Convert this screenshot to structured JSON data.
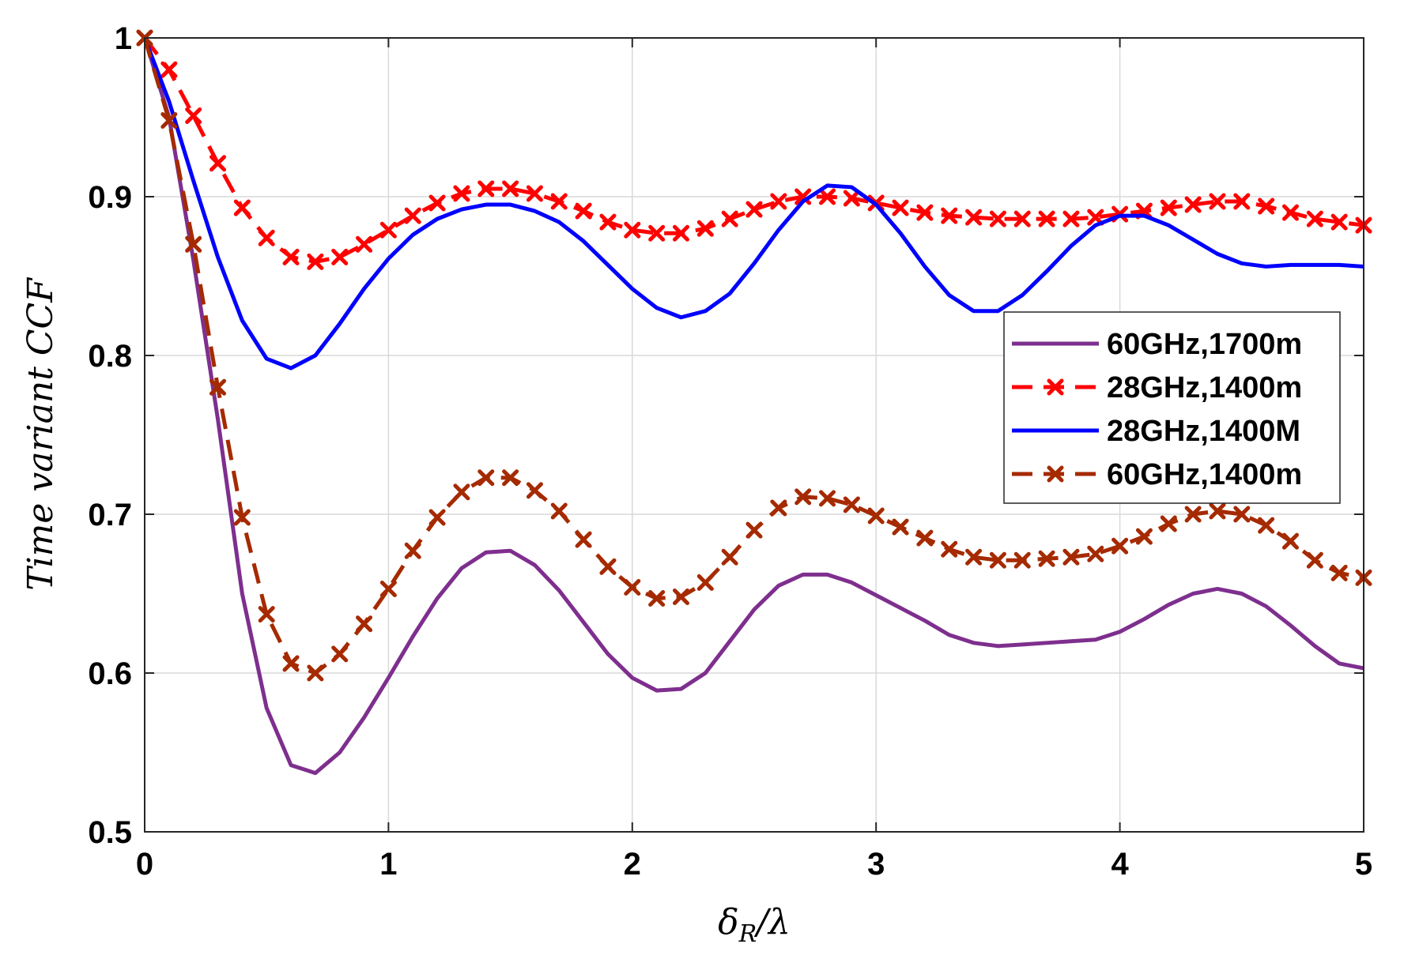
{
  "chart_data": {
    "type": "line",
    "title": "",
    "xlabel": "δR/λ",
    "ylabel": "Time variant CCF",
    "xlim": [
      0,
      5
    ],
    "ylim": [
      0.5,
      1
    ],
    "xticks": [
      "0",
      "1",
      "2",
      "3",
      "4",
      "5"
    ],
    "yticks": [
      "0.5",
      "0.6",
      "0.7",
      "0.8",
      "0.9",
      "1"
    ],
    "grid": true,
    "legend_position": "right",
    "x": [
      0,
      0.1,
      0.2,
      0.3,
      0.4,
      0.5,
      0.6,
      0.7,
      0.8,
      0.9,
      1.0,
      1.1,
      1.2,
      1.3,
      1.4,
      1.5,
      1.6,
      1.7,
      1.8,
      1.9,
      2.0,
      2.1,
      2.2,
      2.3,
      2.4,
      2.5,
      2.6,
      2.7,
      2.8,
      2.9,
      3.0,
      3.1,
      3.2,
      3.3,
      3.4,
      3.5,
      3.6,
      3.7,
      3.8,
      3.9,
      4.0,
      4.1,
      4.2,
      4.3,
      4.4,
      4.5,
      4.6,
      4.7,
      4.8,
      4.9,
      5.0
    ],
    "series": [
      {
        "name": "60GHz,1700m",
        "color": "#7e2f8e",
        "style": "solid",
        "marker": "none",
        "values": [
          1.0,
          0.95,
          0.86,
          0.76,
          0.65,
          0.578,
          0.542,
          0.537,
          0.55,
          0.572,
          0.597,
          0.623,
          0.647,
          0.666,
          0.676,
          0.677,
          0.668,
          0.652,
          0.632,
          0.612,
          0.597,
          0.589,
          0.59,
          0.6,
          0.62,
          0.64,
          0.655,
          0.662,
          0.662,
          0.657,
          0.649,
          0.641,
          0.633,
          0.624,
          0.619,
          0.617,
          0.618,
          0.619,
          0.62,
          0.621,
          0.626,
          0.634,
          0.643,
          0.65,
          0.653,
          0.65,
          0.642,
          0.63,
          0.617,
          0.606,
          0.603
        ]
      },
      {
        "name": "28GHz,1400m",
        "color": "#ff0000",
        "style": "dashed",
        "marker": "x",
        "values": [
          1.0,
          0.98,
          0.951,
          0.921,
          0.893,
          0.874,
          0.862,
          0.859,
          0.862,
          0.87,
          0.879,
          0.888,
          0.896,
          0.902,
          0.905,
          0.905,
          0.902,
          0.897,
          0.891,
          0.884,
          0.879,
          0.877,
          0.877,
          0.88,
          0.886,
          0.892,
          0.897,
          0.9,
          0.9,
          0.899,
          0.896,
          0.893,
          0.89,
          0.888,
          0.887,
          0.886,
          0.886,
          0.886,
          0.886,
          0.887,
          0.889,
          0.891,
          0.893,
          0.895,
          0.897,
          0.897,
          0.894,
          0.89,
          0.886,
          0.884,
          0.882
        ]
      },
      {
        "name": "28GHz,1400M",
        "color": "#0000ff",
        "style": "solid",
        "marker": "none",
        "values": [
          1.0,
          0.96,
          0.91,
          0.862,
          0.822,
          0.798,
          0.792,
          0.8,
          0.82,
          0.842,
          0.861,
          0.876,
          0.886,
          0.892,
          0.895,
          0.895,
          0.891,
          0.884,
          0.872,
          0.857,
          0.842,
          0.83,
          0.824,
          0.828,
          0.839,
          0.858,
          0.879,
          0.897,
          0.907,
          0.906,
          0.895,
          0.877,
          0.856,
          0.838,
          0.828,
          0.828,
          0.838,
          0.853,
          0.869,
          0.882,
          0.888,
          0.888,
          0.882,
          0.873,
          0.864,
          0.858,
          0.856,
          0.857,
          0.857,
          0.857,
          0.856
        ]
      },
      {
        "name": "60GHz,1400m",
        "color": "#a52a00",
        "style": "dashed",
        "marker": "x",
        "values": [
          1.0,
          0.948,
          0.87,
          0.78,
          0.698,
          0.637,
          0.606,
          0.6,
          0.612,
          0.631,
          0.653,
          0.677,
          0.698,
          0.714,
          0.723,
          0.723,
          0.715,
          0.702,
          0.684,
          0.667,
          0.654,
          0.647,
          0.648,
          0.657,
          0.673,
          0.69,
          0.704,
          0.711,
          0.71,
          0.706,
          0.699,
          0.692,
          0.685,
          0.678,
          0.673,
          0.671,
          0.671,
          0.672,
          0.673,
          0.675,
          0.68,
          0.686,
          0.694,
          0.7,
          0.702,
          0.7,
          0.693,
          0.683,
          0.671,
          0.663,
          0.66
        ]
      }
    ]
  }
}
